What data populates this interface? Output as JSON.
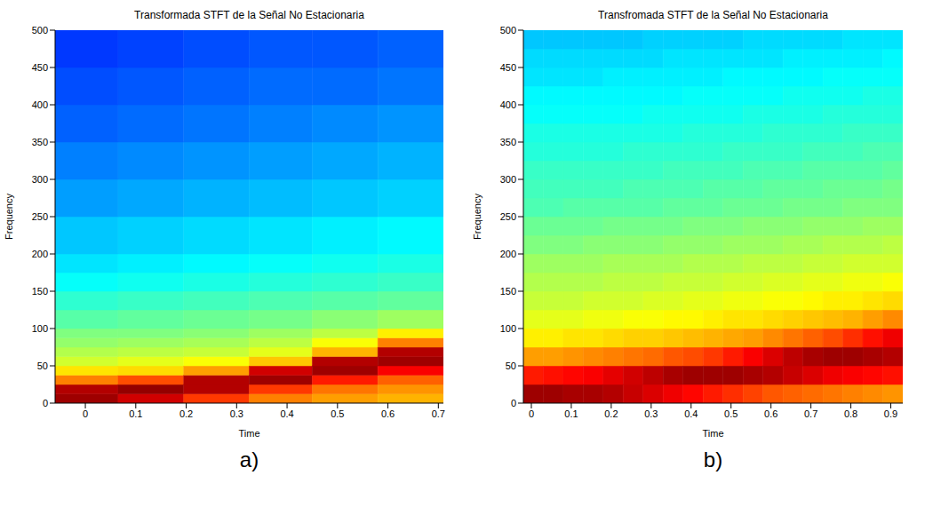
{
  "chart_data": [
    {
      "type": "heatmap",
      "title": "Transformada STFT de la Señal No Estacionaria",
      "x_label": "Time",
      "y_label": "Frequency",
      "panel_label": "a)",
      "xlim": [
        -0.06,
        0.71
      ],
      "xticks": [
        0,
        0.1,
        0.2,
        0.3,
        0.4,
        0.5,
        0.6,
        0.7
      ],
      "ylim": [
        0,
        500
      ],
      "yticks": [
        0,
        50,
        100,
        150,
        200,
        250,
        300,
        350,
        400,
        450,
        500
      ],
      "zlim": [
        0,
        100
      ],
      "x_edges": [
        -0.06,
        0.065,
        0.195,
        0.325,
        0.45,
        0.58,
        0.71
      ],
      "y_edges": [
        0,
        12.5,
        25,
        37.5,
        50,
        62.5,
        75,
        87.5,
        100,
        125,
        150,
        175,
        200,
        250,
        300,
        350,
        400,
        450,
        500
      ],
      "z": [
        [
          97,
          95,
          75,
          65,
          58,
          55,
          52,
          50,
          46,
          42,
          38,
          35,
          32,
          28,
          25,
          22,
          20,
          18
        ],
        [
          92,
          98,
          80,
          66,
          60,
          56,
          53,
          50,
          47,
          43,
          39,
          36,
          33,
          29,
          26,
          23,
          21,
          19
        ],
        [
          82,
          95,
          95,
          72,
          62,
          57,
          54,
          51,
          48,
          44,
          40,
          37,
          34,
          30,
          27,
          24,
          22,
          20
        ],
        [
          75,
          82,
          97,
          92,
          68,
          60,
          56,
          53,
          49,
          45,
          41,
          38,
          35,
          31,
          28,
          25,
          23,
          21
        ],
        [
          72,
          76,
          85,
          97,
          95,
          70,
          62,
          56,
          51,
          46,
          42,
          39,
          36,
          32,
          29,
          26,
          23,
          21
        ],
        [
          70,
          73,
          78,
          88,
          97,
          95,
          75,
          64,
          53,
          47,
          43,
          40,
          37,
          33,
          30,
          27,
          24,
          22
        ]
      ]
    },
    {
      "type": "heatmap",
      "title": "Transfromada STFT de la Señal No Estacionaria",
      "x_label": "Time",
      "y_label": "Frequency",
      "panel_label": "b)",
      "xlim": [
        -0.02,
        0.93
      ],
      "xticks": [
        0,
        0.1,
        0.2,
        0.3,
        0.4,
        0.5,
        0.6,
        0.7,
        0.8,
        0.9
      ],
      "ylim": [
        0,
        500
      ],
      "yticks": [
        0,
        50,
        100,
        150,
        200,
        250,
        300,
        350,
        400,
        450,
        500
      ],
      "zlim": [
        0,
        100
      ],
      "x_edges": [
        -0.02,
        0.03,
        0.08,
        0.13,
        0.18,
        0.23,
        0.28,
        0.33,
        0.38,
        0.43,
        0.48,
        0.53,
        0.58,
        0.63,
        0.68,
        0.73,
        0.78,
        0.83,
        0.88,
        0.93
      ],
      "y_edges": [
        0,
        25,
        50,
        75,
        100,
        125,
        150,
        175,
        200,
        225,
        250,
        275,
        300,
        325,
        350,
        375,
        400,
        425,
        450,
        475,
        500
      ],
      "z": [
        [
          97,
          85,
          72,
          64,
          60,
          57,
          55,
          53,
          50,
          48,
          45,
          44,
          43,
          41,
          40,
          38,
          37,
          35,
          34,
          32
        ],
        [
          97,
          86,
          72,
          64,
          60,
          57,
          55,
          53,
          50,
          48,
          45,
          44,
          43,
          41,
          40,
          38,
          37,
          35,
          34,
          32
        ],
        [
          96,
          87,
          73,
          65,
          60,
          57,
          55,
          53,
          50,
          48,
          46,
          44,
          43,
          41,
          40,
          38,
          37,
          35,
          34,
          32
        ],
        [
          96,
          88,
          74,
          65,
          61,
          58,
          55,
          53,
          51,
          48,
          46,
          44,
          43,
          41,
          40,
          38,
          37,
          35,
          34,
          32
        ],
        [
          95,
          90,
          75,
          66,
          61,
          58,
          56,
          54,
          51,
          49,
          46,
          44,
          43,
          41,
          40,
          38,
          37,
          36,
          34,
          32
        ],
        [
          93,
          92,
          76,
          67,
          62,
          58,
          56,
          54,
          51,
          49,
          46,
          45,
          43,
          42,
          40,
          38,
          37,
          36,
          34,
          32
        ],
        [
          91,
          94,
          77,
          67,
          62,
          59,
          56,
          54,
          51,
          49,
          46,
          45,
          43,
          42,
          40,
          39,
          37,
          36,
          34,
          33
        ],
        [
          89,
          96,
          79,
          68,
          63,
          59,
          57,
          54,
          52,
          49,
          47,
          45,
          44,
          42,
          40,
          39,
          37,
          36,
          35,
          33
        ],
        [
          87,
          97,
          80,
          69,
          63,
          60,
          57,
          55,
          52,
          50,
          47,
          45,
          44,
          42,
          41,
          39,
          38,
          36,
          35,
          33
        ],
        [
          85,
          97,
          82,
          70,
          64,
          60,
          57,
          55,
          52,
          50,
          47,
          46,
          44,
          42,
          41,
          39,
          38,
          36,
          35,
          33
        ],
        [
          83,
          97,
          85,
          71,
          65,
          61,
          58,
          55,
          53,
          50,
          48,
          46,
          44,
          43,
          41,
          39,
          38,
          37,
          35,
          33
        ],
        [
          81,
          96,
          88,
          72,
          65,
          61,
          58,
          56,
          53,
          51,
          48,
          46,
          45,
          43,
          41,
          40,
          38,
          37,
          35,
          34
        ],
        [
          79,
          95,
          91,
          74,
          66,
          62,
          59,
          56,
          53,
          51,
          48,
          47,
          45,
          43,
          42,
          40,
          38,
          37,
          35,
          34
        ],
        [
          78,
          93,
          94,
          76,
          67,
          62,
          59,
          56,
          54,
          51,
          49,
          47,
          45,
          43,
          42,
          40,
          39,
          37,
          36,
          34
        ],
        [
          77,
          91,
          96,
          78,
          68,
          63,
          60,
          57,
          54,
          52,
          49,
          47,
          46,
          44,
          42,
          40,
          39,
          37,
          36,
          34
        ],
        [
          76,
          89,
          97,
          80,
          69,
          64,
          60,
          57,
          55,
          52,
          49,
          48,
          46,
          44,
          42,
          41,
          39,
          38,
          36,
          34
        ],
        [
          75,
          88,
          97,
          83,
          70,
          64,
          61,
          58,
          55,
          52,
          50,
          48,
          46,
          44,
          43,
          41,
          39,
          38,
          36,
          35
        ],
        [
          74,
          87,
          96,
          86,
          72,
          65,
          61,
          58,
          55,
          53,
          50,
          48,
          46,
          45,
          43,
          41,
          40,
          38,
          36,
          35
        ],
        [
          73,
          86,
          95,
          89,
          74,
          66,
          62,
          58,
          56,
          53,
          50,
          49,
          47,
          45,
          43,
          41,
          40,
          38,
          37,
          35
        ]
      ]
    }
  ]
}
